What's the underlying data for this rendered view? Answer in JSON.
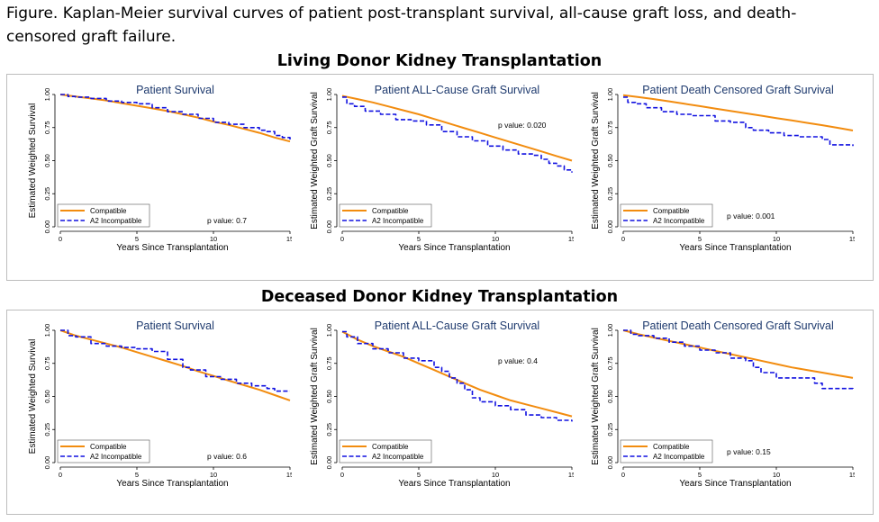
{
  "figure": {
    "caption": "Figure. Kaplan-Meier survival curves of patient post-transplant survival, all-cause graft loss, and death-censored graft failure."
  },
  "sections": [
    {
      "title": "Living Donor Kidney Transplantation"
    },
    {
      "title": "Deceased Donor Kidney Transplantation"
    }
  ],
  "colors": {
    "compatible": "#f28c0f",
    "incompatible": "#1010e0",
    "plot_title": "#1e3a6e"
  },
  "chart_data": [
    {
      "type": "line",
      "title": "Patient Survival",
      "xlabel": "Years Since Transplantation",
      "ylabel": "Estimated Weighted Survival",
      "xlim": [
        0,
        15
      ],
      "ylim": [
        0,
        1
      ],
      "xticks": [
        "0",
        "5",
        "10",
        "15"
      ],
      "yticks": [
        "0.00",
        "0.25",
        "0.50",
        "0.75",
        "1.00"
      ],
      "grid": false,
      "legend": "bottom-left",
      "p_value": "p value: 0.7",
      "series": [
        {
          "name": "Compatible",
          "x": [
            0,
            1,
            2,
            3,
            4,
            5,
            6,
            7,
            8,
            9,
            10,
            11,
            12,
            13,
            14,
            15
          ],
          "y": [
            1.0,
            0.985,
            0.97,
            0.955,
            0.935,
            0.915,
            0.895,
            0.875,
            0.85,
            0.825,
            0.795,
            0.77,
            0.74,
            0.71,
            0.675,
            0.645
          ]
        },
        {
          "name": "A2 Incompatible",
          "x": [
            0,
            0.5,
            1,
            2,
            3,
            4,
            5,
            6,
            7,
            8,
            9,
            10,
            11,
            12,
            13,
            13.5,
            14,
            14.5,
            15
          ],
          "y": [
            1.0,
            0.985,
            0.98,
            0.97,
            0.95,
            0.94,
            0.93,
            0.9,
            0.87,
            0.85,
            0.82,
            0.79,
            0.775,
            0.75,
            0.73,
            0.72,
            0.69,
            0.675,
            0.66
          ]
        }
      ]
    },
    {
      "type": "line",
      "title": "Patient ALL-Cause Graft Survival",
      "xlabel": "Years Since Transplantation",
      "ylabel": "Estimated Weighted Graft Survival",
      "xlim": [
        0,
        15
      ],
      "ylim": [
        0,
        1
      ],
      "xticks": [
        "0",
        "5",
        "10",
        "15"
      ],
      "yticks": [
        "0.00",
        "0.25",
        "0.50",
        "0.75",
        "1.00"
      ],
      "grid": false,
      "legend": "bottom-left",
      "p_value": "p value: 0.020",
      "series": [
        {
          "name": "Compatible",
          "x": [
            0,
            1,
            2,
            3,
            4,
            5,
            6,
            7,
            8,
            9,
            10,
            11,
            12,
            13,
            14,
            15
          ],
          "y": [
            0.99,
            0.965,
            0.94,
            0.91,
            0.88,
            0.85,
            0.815,
            0.78,
            0.745,
            0.71,
            0.675,
            0.64,
            0.605,
            0.57,
            0.535,
            0.5
          ]
        },
        {
          "name": "A2 Incompatible",
          "x": [
            0,
            0.3,
            0.8,
            1.5,
            2.5,
            3.5,
            4.5,
            5.5,
            6.5,
            7.5,
            8.5,
            9.5,
            10.5,
            11.5,
            12.5,
            13,
            13.5,
            14,
            14.5,
            15
          ],
          "y": [
            0.98,
            0.93,
            0.91,
            0.875,
            0.85,
            0.81,
            0.8,
            0.77,
            0.72,
            0.68,
            0.65,
            0.61,
            0.58,
            0.55,
            0.54,
            0.51,
            0.48,
            0.46,
            0.43,
            0.41
          ]
        }
      ]
    },
    {
      "type": "line",
      "title": "Patient Death Censored Graft Survival",
      "xlabel": "Years Since Transplantation",
      "ylabel": "Estimated Weighted Graft Survival",
      "xlim": [
        0,
        15
      ],
      "ylim": [
        0,
        1
      ],
      "xticks": [
        "0",
        "5",
        "10",
        "15"
      ],
      "yticks": [
        "0.00",
        "0.25",
        "0.50",
        "0.75",
        "1.00"
      ],
      "grid": false,
      "legend": "bottom-left",
      "p_value": "p value: 0.001",
      "series": [
        {
          "name": "Compatible",
          "x": [
            0,
            1,
            2,
            3,
            4,
            5,
            6,
            7,
            8,
            9,
            10,
            11,
            12,
            13,
            14,
            15
          ],
          "y": [
            0.995,
            0.98,
            0.965,
            0.948,
            0.93,
            0.912,
            0.894,
            0.876,
            0.858,
            0.84,
            0.822,
            0.804,
            0.786,
            0.768,
            0.748,
            0.728
          ]
        },
        {
          "name": "A2 Incompatible",
          "x": [
            0,
            0.3,
            0.8,
            1.5,
            2.5,
            3.5,
            4.5,
            6,
            7,
            8,
            8.5,
            9.5,
            10.5,
            11.5,
            12.5,
            13,
            13.5,
            14,
            15
          ],
          "y": [
            0.98,
            0.94,
            0.93,
            0.9,
            0.87,
            0.85,
            0.84,
            0.8,
            0.79,
            0.75,
            0.73,
            0.71,
            0.69,
            0.68,
            0.68,
            0.66,
            0.62,
            0.62,
            0.61
          ]
        }
      ]
    },
    {
      "type": "line",
      "title": "Patient Survival",
      "xlabel": "Years Since Transplantation",
      "ylabel": "Estimated Weighted Survival",
      "xlim": [
        0,
        15
      ],
      "ylim": [
        0,
        1
      ],
      "xticks": [
        "0",
        "5",
        "10",
        "15"
      ],
      "yticks": [
        "0.00",
        "0.25",
        "0.50",
        "0.75",
        "1.00"
      ],
      "grid": false,
      "legend": "bottom-left",
      "p_value": "p value: 0.6",
      "series": [
        {
          "name": "Compatible",
          "x": [
            0,
            1,
            2,
            3,
            4,
            5,
            6,
            7,
            8,
            9,
            10,
            11,
            12,
            13,
            14,
            15
          ],
          "y": [
            1.0,
            0.96,
            0.93,
            0.9,
            0.87,
            0.835,
            0.8,
            0.765,
            0.73,
            0.69,
            0.655,
            0.62,
            0.585,
            0.55,
            0.51,
            0.47
          ]
        },
        {
          "name": "A2 Incompatible",
          "x": [
            0,
            0.5,
            1,
            2,
            3,
            4,
            5,
            6,
            7,
            8,
            8.5,
            9.5,
            10.5,
            11.5,
            12.5,
            13.5,
            14,
            15
          ],
          "y": [
            1.0,
            0.96,
            0.95,
            0.9,
            0.88,
            0.87,
            0.86,
            0.84,
            0.78,
            0.72,
            0.7,
            0.65,
            0.63,
            0.6,
            0.58,
            0.56,
            0.54,
            0.54
          ]
        }
      ]
    },
    {
      "type": "line",
      "title": "Patient ALL-Cause Graft Survival",
      "xlabel": "Years Since Transplantation",
      "ylabel": "Estimated Weighted Graft Survival",
      "xlim": [
        0,
        15
      ],
      "ylim": [
        0,
        1
      ],
      "xticks": [
        "0",
        "5",
        "10",
        "15"
      ],
      "yticks": [
        "0.00",
        "0.25",
        "0.50",
        "0.75",
        "1.00"
      ],
      "grid": false,
      "legend": "bottom-left",
      "p_value": "p value: 0.4",
      "series": [
        {
          "name": "Compatible",
          "x": [
            0,
            1,
            2,
            3,
            4,
            5,
            6,
            7,
            8,
            9,
            10,
            11,
            12,
            13,
            14,
            15
          ],
          "y": [
            0.99,
            0.93,
            0.88,
            0.84,
            0.8,
            0.75,
            0.7,
            0.65,
            0.6,
            0.55,
            0.51,
            0.47,
            0.44,
            0.41,
            0.38,
            0.35
          ]
        },
        {
          "name": "A2 Incompatible",
          "x": [
            0,
            0.3,
            1,
            2,
            3,
            4,
            5,
            6,
            6.5,
            7,
            7.5,
            8,
            8.5,
            9,
            10,
            11,
            12,
            13,
            14,
            15
          ],
          "y": [
            0.99,
            0.95,
            0.9,
            0.86,
            0.83,
            0.79,
            0.77,
            0.72,
            0.69,
            0.64,
            0.6,
            0.55,
            0.49,
            0.46,
            0.43,
            0.4,
            0.36,
            0.34,
            0.32,
            0.31
          ]
        }
      ]
    },
    {
      "type": "line",
      "title": "Patient Death Censored Graft Survival",
      "xlabel": "Years Since Transplantation",
      "ylabel": "Estimated Weighted Graft Survival",
      "xlim": [
        0,
        15
      ],
      "ylim": [
        0,
        1
      ],
      "xticks": [
        "0",
        "5",
        "10",
        "15"
      ],
      "yticks": [
        "0.00",
        "0.25",
        "0.50",
        "0.75",
        "1.00"
      ],
      "grid": false,
      "legend": "bottom-left",
      "p_value": "p value: 0.15",
      "series": [
        {
          "name": "Compatible",
          "x": [
            0,
            1,
            2,
            3,
            4,
            5,
            6,
            7,
            8,
            9,
            10,
            11,
            12,
            13,
            14,
            15
          ],
          "y": [
            1.0,
            0.97,
            0.945,
            0.92,
            0.895,
            0.87,
            0.845,
            0.82,
            0.795,
            0.77,
            0.745,
            0.72,
            0.7,
            0.68,
            0.66,
            0.64
          ]
        },
        {
          "name": "A2 Incompatible",
          "x": [
            0,
            0.5,
            1,
            2,
            3,
            4,
            5,
            6,
            7,
            8,
            8.5,
            9,
            10,
            11,
            12,
            12.5,
            13,
            14,
            15
          ],
          "y": [
            1.0,
            0.97,
            0.96,
            0.94,
            0.91,
            0.88,
            0.85,
            0.83,
            0.79,
            0.77,
            0.72,
            0.68,
            0.64,
            0.64,
            0.64,
            0.6,
            0.56,
            0.56,
            0.55
          ]
        }
      ]
    }
  ]
}
